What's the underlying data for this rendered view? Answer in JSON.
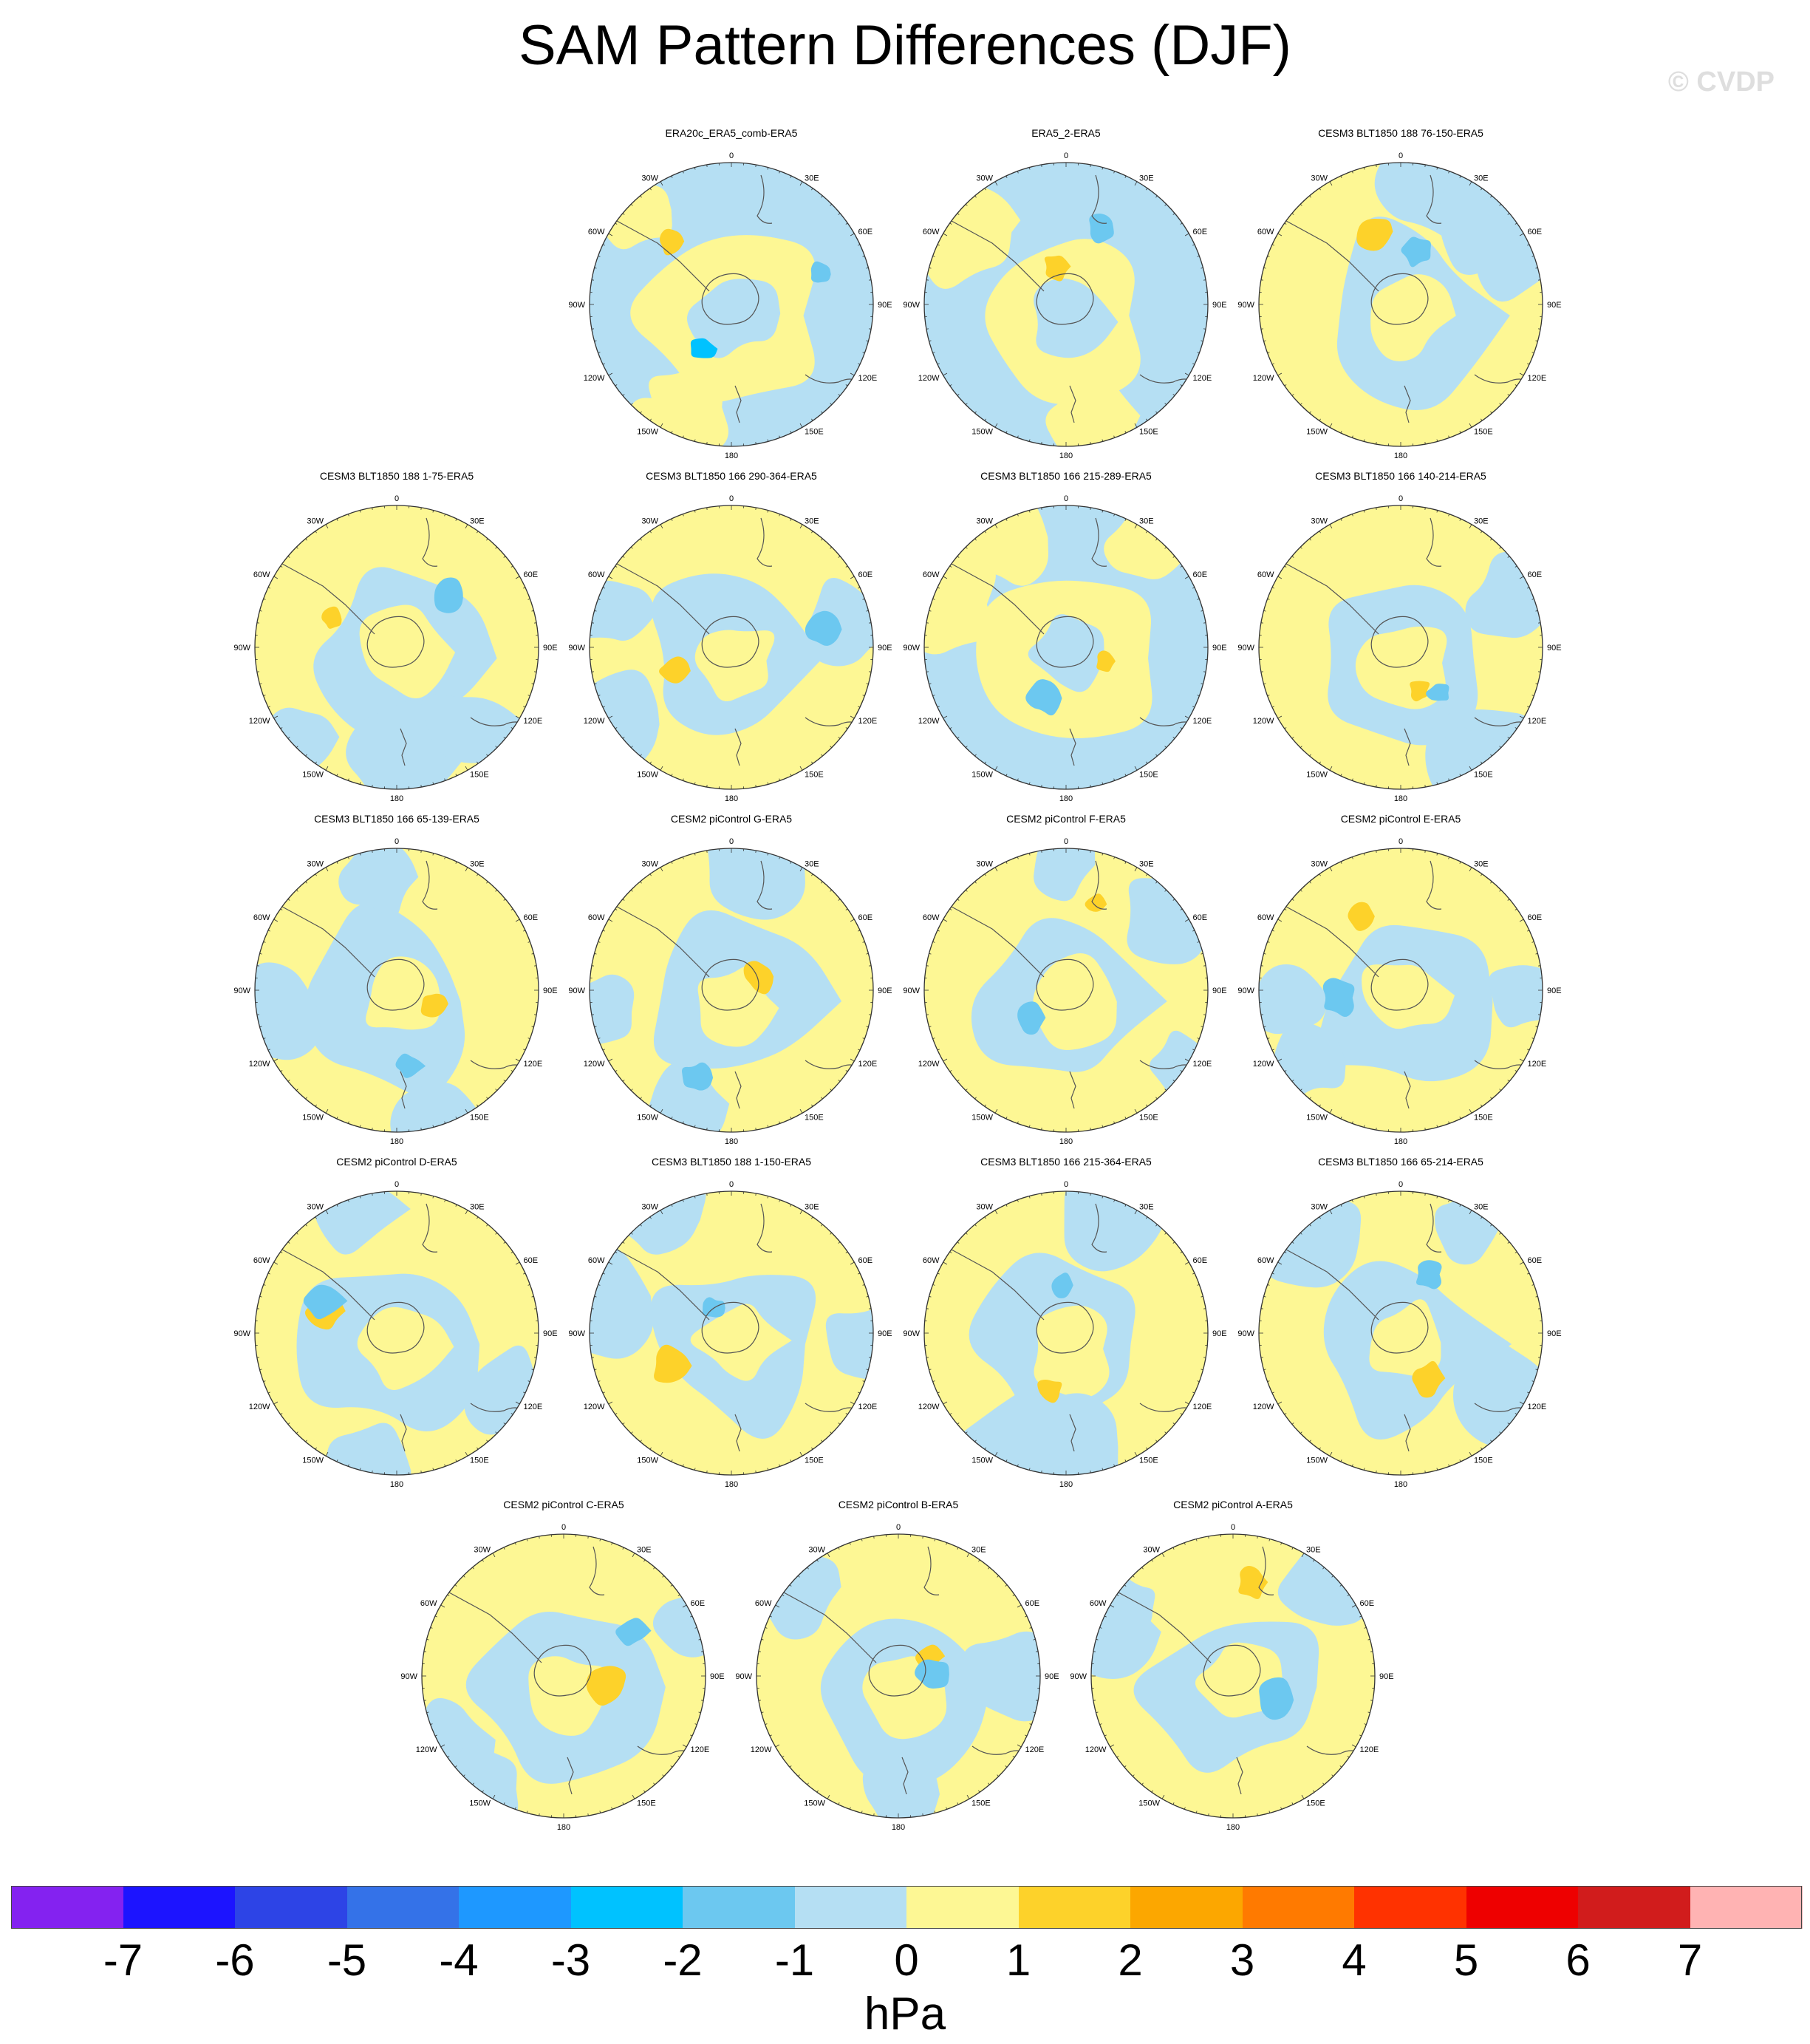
{
  "title": "SAM Pattern Differences (DJF)",
  "watermark": "© CVDP",
  "units": "hPa",
  "colorbar": {
    "colors": [
      "#8422f0",
      "#1c14ff",
      "#2d44e6",
      "#3472e8",
      "#1e98ff",
      "#00c2ff",
      "#6cc8f0",
      "#b5dff3",
      "#fdf794",
      "#fdd22a",
      "#fca700",
      "#ff7a00",
      "#ff3200",
      "#ee0000",
      "#d11c1c",
      "#ffb3b3"
    ],
    "labels": [
      "-7",
      "-6",
      "-5",
      "-4",
      "-3",
      "-2",
      "-1",
      "0",
      "1",
      "2",
      "3",
      "4",
      "5",
      "6",
      "7"
    ]
  },
  "map_labels": {
    "north": "0",
    "south": "180",
    "left": [
      "30W",
      "60W",
      "90W",
      "120W",
      "150W"
    ],
    "right": [
      "30E",
      "60E",
      "90E",
      "120E",
      "150E"
    ]
  },
  "panels": [
    {
      "title": "ERA20c_ERA5_comb-ERA5",
      "dominant": "negative"
    },
    {
      "title": "ERA5_2-ERA5",
      "dominant": "negative"
    },
    {
      "title": "CESM3 BLT1850 188 76-150-ERA5",
      "dominant": "positive"
    },
    {
      "title": "CESM3 BLT1850 188 1-75-ERA5",
      "dominant": "positive"
    },
    {
      "title": "CESM3 BLT1850 166 290-364-ERA5",
      "dominant": "positive"
    },
    {
      "title": "CESM3 BLT1850 166 215-289-ERA5",
      "dominant": "negative"
    },
    {
      "title": "CESM3 BLT1850 166 140-214-ERA5",
      "dominant": "positive"
    },
    {
      "title": "CESM3 BLT1850 166 65-139-ERA5",
      "dominant": "positive"
    },
    {
      "title": "CESM2 piControl G-ERA5",
      "dominant": "positive"
    },
    {
      "title": "CESM2 piControl F-ERA5",
      "dominant": "positive"
    },
    {
      "title": "CESM2 piControl E-ERA5",
      "dominant": "positive"
    },
    {
      "title": "CESM2 piControl D-ERA5",
      "dominant": "positive"
    },
    {
      "title": "CESM3 BLT1850 188 1-150-ERA5",
      "dominant": "positive"
    },
    {
      "title": "CESM3 BLT1850 166 215-364-ERA5",
      "dominant": "positive"
    },
    {
      "title": "CESM3 BLT1850 166 65-214-ERA5",
      "dominant": "positive"
    },
    {
      "title": "CESM2 piControl C-ERA5",
      "dominant": "positive"
    },
    {
      "title": "CESM2 piControl B-ERA5",
      "dominant": "positive"
    },
    {
      "title": "CESM2 piControl A-ERA5",
      "dominant": "positive"
    }
  ]
}
